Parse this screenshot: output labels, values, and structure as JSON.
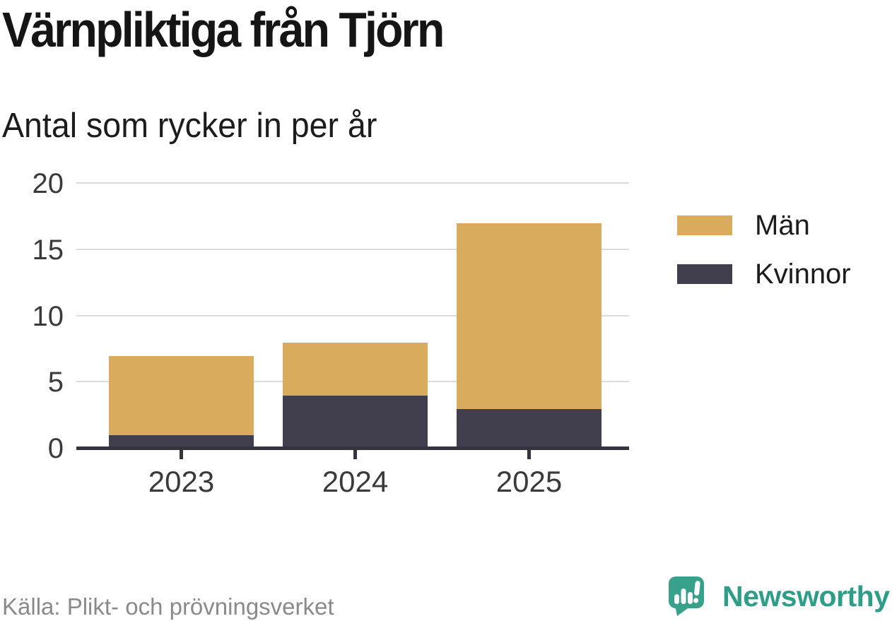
{
  "header": {
    "title": "Värnpliktiga från Tjörn",
    "subtitle": "Antal som rycker in per år"
  },
  "footer": {
    "source": "Källa: Plikt- och prövningsverket",
    "brand_name": "Newsworthy"
  },
  "colors": {
    "men_gold": "#d8ac5c",
    "women_dark": "#413f4d",
    "brand_teal": "#38a18c",
    "gridline": "#dcdcdc",
    "axis": "#35333e"
  },
  "chart_data": {
    "type": "bar",
    "stacked": true,
    "title": "Värnpliktiga från Tjörn",
    "subtitle": "Antal som rycker in per år",
    "categories": [
      "2023",
      "2024",
      "2025"
    ],
    "series": [
      {
        "name": "Män",
        "color": "#d8ac5c",
        "values": [
          6,
          4,
          14
        ]
      },
      {
        "name": "Kvinnor",
        "color": "#413f4d",
        "values": [
          1,
          4,
          3
        ]
      }
    ],
    "totals": [
      7,
      8,
      17
    ],
    "bottom_series": "Kvinnor",
    "xlabel": "",
    "ylabel": "",
    "ylim": [
      0,
      20
    ],
    "yticks": [
      0,
      5,
      10,
      15,
      20
    ],
    "grid": "horizontal",
    "legend_position": "right"
  }
}
